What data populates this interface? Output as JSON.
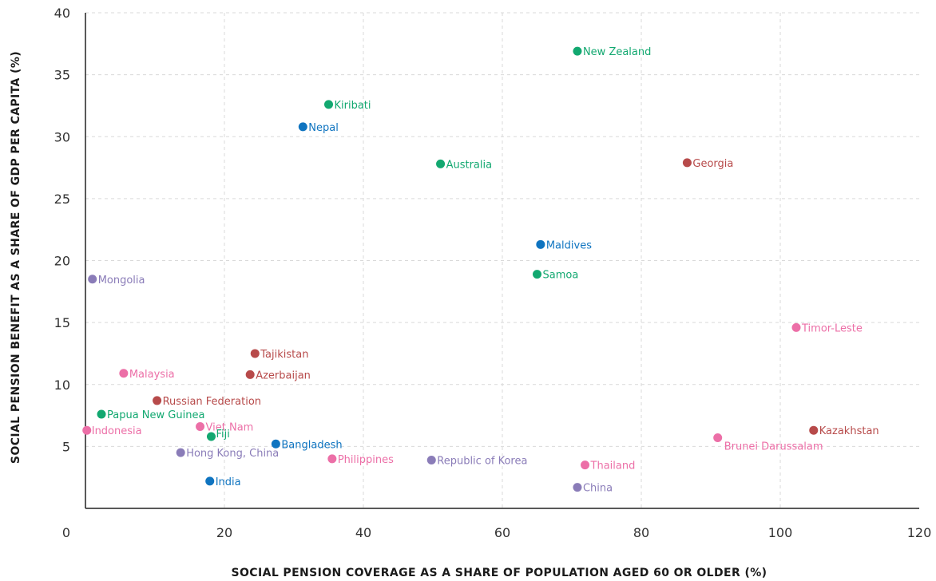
{
  "chart_data": {
    "type": "scatter",
    "xlabel": "SOCIAL PENSION COVERAGE AS A SHARE OF POPULATION AGED 60 OR OLDER (%)",
    "ylabel": "SOCIAL PENSION BENEFIT AS  A SHARE OF GDP PER CAPITA (%)",
    "xlim": [
      0,
      120
    ],
    "ylim": [
      0,
      40
    ],
    "x_ticks": [
      "20",
      "40",
      "60",
      "80",
      "100",
      "120"
    ],
    "y_ticks": [
      "5",
      "10",
      "15",
      "20",
      "25",
      "30",
      "35",
      "40"
    ],
    "origin_label": "0",
    "grid": true,
    "colors": {
      "green": "#12a870",
      "blue": "#0f74c0",
      "red": "#b74a4a",
      "pink": "#ec6fa7",
      "purple": "#8a7cb8"
    },
    "points": [
      {
        "label": "New Zealand",
        "x": 70.8,
        "y": 36.9,
        "color": "green"
      },
      {
        "label": "Kiribati",
        "x": 35.0,
        "y": 32.6,
        "color": "green"
      },
      {
        "label": "Nepal",
        "x": 31.3,
        "y": 30.8,
        "color": "blue"
      },
      {
        "label": "Australia",
        "x": 51.1,
        "y": 27.8,
        "color": "green"
      },
      {
        "label": "Georgia",
        "x": 86.6,
        "y": 27.9,
        "color": "red"
      },
      {
        "label": "Maldives",
        "x": 65.5,
        "y": 21.3,
        "color": "blue"
      },
      {
        "label": "Mongolia",
        "x": 1.0,
        "y": 18.5,
        "color": "purple"
      },
      {
        "label": "Samoa",
        "x": 65.0,
        "y": 18.9,
        "color": "green"
      },
      {
        "label": "Timor-Leste",
        "x": 102.3,
        "y": 14.6,
        "color": "pink"
      },
      {
        "label": "Tajikistan",
        "x": 24.4,
        "y": 12.5,
        "color": "red"
      },
      {
        "label": "Azerbaijan",
        "x": 23.7,
        "y": 10.8,
        "color": "red"
      },
      {
        "label": "Malaysia",
        "x": 5.5,
        "y": 10.9,
        "color": "pink"
      },
      {
        "label": "Russian Federation",
        "x": 10.3,
        "y": 8.7,
        "color": "red"
      },
      {
        "label": "Papua New Guinea",
        "x": 2.3,
        "y": 7.6,
        "color": "green"
      },
      {
        "label": "Indonesia",
        "x": 0.2,
        "y": 6.3,
        "color": "pink"
      },
      {
        "label": "Viet Nam",
        "x": 16.5,
        "y": 6.6,
        "color": "pink"
      },
      {
        "label": "Fiji",
        "x": 18.1,
        "y": 5.8,
        "color": "green"
      },
      {
        "label": "Bangladesh",
        "x": 27.4,
        "y": 5.2,
        "color": "blue"
      },
      {
        "label": "Hong Kong, China",
        "x": 13.7,
        "y": 4.5,
        "color": "purple"
      },
      {
        "label": "Philippines",
        "x": 35.5,
        "y": 4.0,
        "color": "pink"
      },
      {
        "label": "Republic of Korea",
        "x": 49.8,
        "y": 3.9,
        "color": "purple"
      },
      {
        "label": "Thailand",
        "x": 71.9,
        "y": 3.5,
        "color": "pink"
      },
      {
        "label": "Brunei Darussalam",
        "x": 91.0,
        "y": 5.7,
        "color": "pink"
      },
      {
        "label": "Kazakhstan",
        "x": 104.8,
        "y": 6.3,
        "color": "red"
      },
      {
        "label": "India",
        "x": 17.9,
        "y": 2.2,
        "color": "blue"
      },
      {
        "label": "China",
        "x": 70.8,
        "y": 1.7,
        "color": "purple"
      }
    ]
  }
}
